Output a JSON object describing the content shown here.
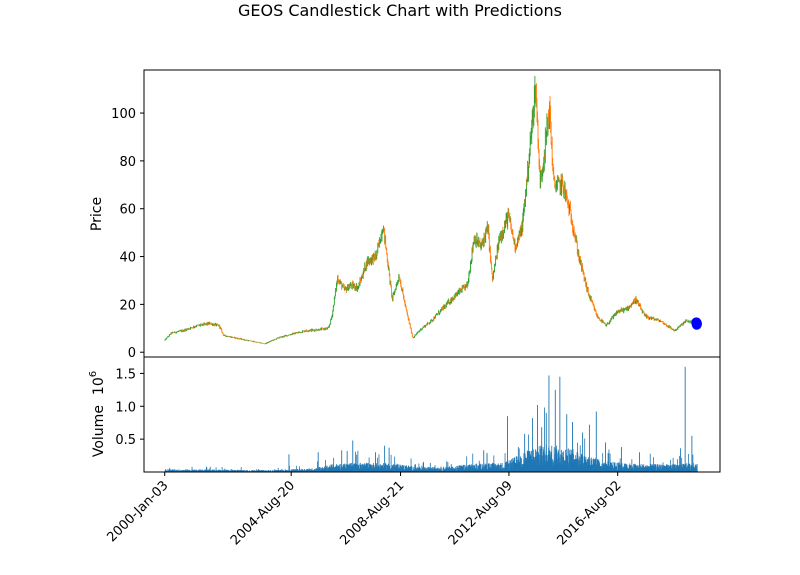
{
  "chart_data": {
    "type": "candlestick",
    "title": "GEOS Candlestick Chart with Predictions",
    "price_panel": {
      "ylabel": "Price",
      "ylim": [
        -2,
        118
      ],
      "yticks": [
        0,
        20,
        40,
        60,
        80,
        100
      ],
      "close_anchors": [
        [
          "2000-01-03",
          5
        ],
        [
          "2000-04-01",
          8
        ],
        [
          "2000-09-01",
          9
        ],
        [
          "2001-03-01",
          11
        ],
        [
          "2001-09-01",
          12
        ],
        [
          "2002-01-01",
          11
        ],
        [
          "2002-03-01",
          7
        ],
        [
          "2003-01-01",
          5
        ],
        [
          "2003-09-01",
          3.5
        ],
        [
          "2004-03-01",
          6
        ],
        [
          "2004-08-20",
          7.5
        ],
        [
          "2005-03-01",
          9
        ],
        [
          "2005-09-01",
          9.5
        ],
        [
          "2006-01-01",
          10
        ],
        [
          "2006-02-15",
          15
        ],
        [
          "2006-05-01",
          31
        ],
        [
          "2006-08-01",
          26
        ],
        [
          "2006-11-01",
          28
        ],
        [
          "2007-02-01",
          27
        ],
        [
          "2007-06-01",
          38
        ],
        [
          "2007-10-01",
          40
        ],
        [
          "2008-01-01",
          53
        ],
        [
          "2008-03-01",
          38
        ],
        [
          "2008-05-01",
          22
        ],
        [
          "2008-08-01",
          32
        ],
        [
          "2008-11-01",
          18
        ],
        [
          "2009-02-01",
          6
        ],
        [
          "2009-06-01",
          10
        ],
        [
          "2009-10-01",
          13
        ],
        [
          "2010-03-01",
          18
        ],
        [
          "2010-09-01",
          24
        ],
        [
          "2011-02-01",
          28
        ],
        [
          "2011-05-01",
          48
        ],
        [
          "2011-08-01",
          44
        ],
        [
          "2011-11-01",
          52
        ],
        [
          "2012-01-01",
          30
        ],
        [
          "2012-04-01",
          47
        ],
        [
          "2012-08-01",
          57
        ],
        [
          "2012-11-01",
          44
        ],
        [
          "2013-02-01",
          52
        ],
        [
          "2013-05-01",
          80
        ],
        [
          "2013-08-01",
          112
        ],
        [
          "2013-10-01",
          70
        ],
        [
          "2013-12-01",
          85
        ],
        [
          "2014-02-01",
          102
        ],
        [
          "2014-04-01",
          70
        ],
        [
          "2014-08-01",
          70
        ],
        [
          "2014-12-01",
          55
        ],
        [
          "2015-03-01",
          40
        ],
        [
          "2015-07-01",
          25
        ],
        [
          "2015-11-01",
          15
        ],
        [
          "2016-03-01",
          11
        ],
        [
          "2016-08-01",
          17
        ],
        [
          "2016-12-01",
          18
        ],
        [
          "2017-04-01",
          22
        ],
        [
          "2017-08-01",
          15
        ],
        [
          "2018-03-01",
          13
        ],
        [
          "2018-09-01",
          9
        ],
        [
          "2019-02-01",
          13
        ],
        [
          "2019-06-01",
          12.5
        ]
      ],
      "predictions": [
        {
          "date": "2019-06-20",
          "value": 12.5
        },
        {
          "date": "2019-06-25",
          "value": 11.5
        },
        {
          "date": "2019-06-28",
          "value": 12
        }
      ],
      "up_color": "#2ca02c",
      "down_color": "#ff7f0e",
      "prediction_color": "#0000ff"
    },
    "volume_panel": {
      "ylabel": "Volume",
      "scale_label": "10",
      "scale_exponent": "6",
      "ylim": [
        0,
        1.75
      ],
      "yticks": [
        0.5,
        1.0,
        1.5
      ],
      "ytick_labels": [
        "0.5",
        "1.0",
        "1.5"
      ],
      "bar_color": "#1f77b4",
      "base_levels_millions": [
        [
          "2000-01-03",
          0.03
        ],
        [
          "2003-12-01",
          0.02
        ],
        [
          "2005-06-01",
          0.04
        ],
        [
          "2006-04-01",
          0.09
        ],
        [
          "2007-06-01",
          0.1
        ],
        [
          "2008-06-01",
          0.09
        ],
        [
          "2009-06-01",
          0.05
        ],
        [
          "2010-06-01",
          0.06
        ],
        [
          "2011-06-01",
          0.09
        ],
        [
          "2012-06-01",
          0.1
        ],
        [
          "2013-06-01",
          0.25
        ],
        [
          "2014-01-01",
          0.3
        ],
        [
          "2015-01-01",
          0.24
        ],
        [
          "2016-01-01",
          0.12
        ],
        [
          "2017-01-01",
          0.09
        ],
        [
          "2018-06-01",
          0.08
        ],
        [
          "2019-06-28",
          0.1
        ]
      ],
      "spikes_millions": [
        [
          "2004-07-15",
          0.27
        ],
        [
          "2005-08-10",
          0.3
        ],
        [
          "2006-06-20",
          0.33
        ],
        [
          "2006-09-01",
          0.32
        ],
        [
          "2006-11-15",
          0.48
        ],
        [
          "2007-09-15",
          0.3
        ],
        [
          "2008-01-15",
          0.4
        ],
        [
          "2008-03-15",
          0.37
        ],
        [
          "2011-09-01",
          0.33
        ],
        [
          "2011-10-15",
          0.29
        ],
        [
          "2012-07-15",
          0.85
        ],
        [
          "2013-03-01",
          0.58
        ],
        [
          "2013-06-15",
          0.82
        ],
        [
          "2013-08-20",
          1.02
        ],
        [
          "2013-10-15",
          0.68
        ],
        [
          "2013-12-15",
          0.9
        ],
        [
          "2014-01-20",
          1.47
        ],
        [
          "2014-04-15",
          1.25
        ],
        [
          "2014-06-15",
          1.45
        ],
        [
          "2014-09-15",
          0.88
        ],
        [
          "2014-12-01",
          0.76
        ],
        [
          "2015-04-15",
          0.6
        ],
        [
          "2015-07-15",
          0.72
        ],
        [
          "2015-10-15",
          0.92
        ],
        [
          "2016-02-15",
          0.45
        ],
        [
          "2016-09-15",
          0.38
        ],
        [
          "2017-05-15",
          0.3
        ],
        [
          "2018-11-15",
          0.36
        ],
        [
          "2019-01-15",
          1.6
        ],
        [
          "2019-04-15",
          0.55
        ]
      ]
    },
    "x_axis": {
      "range": [
        "1999-04-01",
        "2020-05-01"
      ],
      "data_start": "2000-01-03",
      "data_end": "2019-06-28",
      "ticks": [
        {
          "date": "2000-01-03",
          "label": "2000-Jan-03"
        },
        {
          "date": "2004-08-20",
          "label": "2004-Aug-20"
        },
        {
          "date": "2008-08-21",
          "label": "2008-Aug-21"
        },
        {
          "date": "2012-08-09",
          "label": "2012-Aug-09"
        },
        {
          "date": "2016-08-02",
          "label": "2016-Aug-02"
        }
      ]
    }
  }
}
